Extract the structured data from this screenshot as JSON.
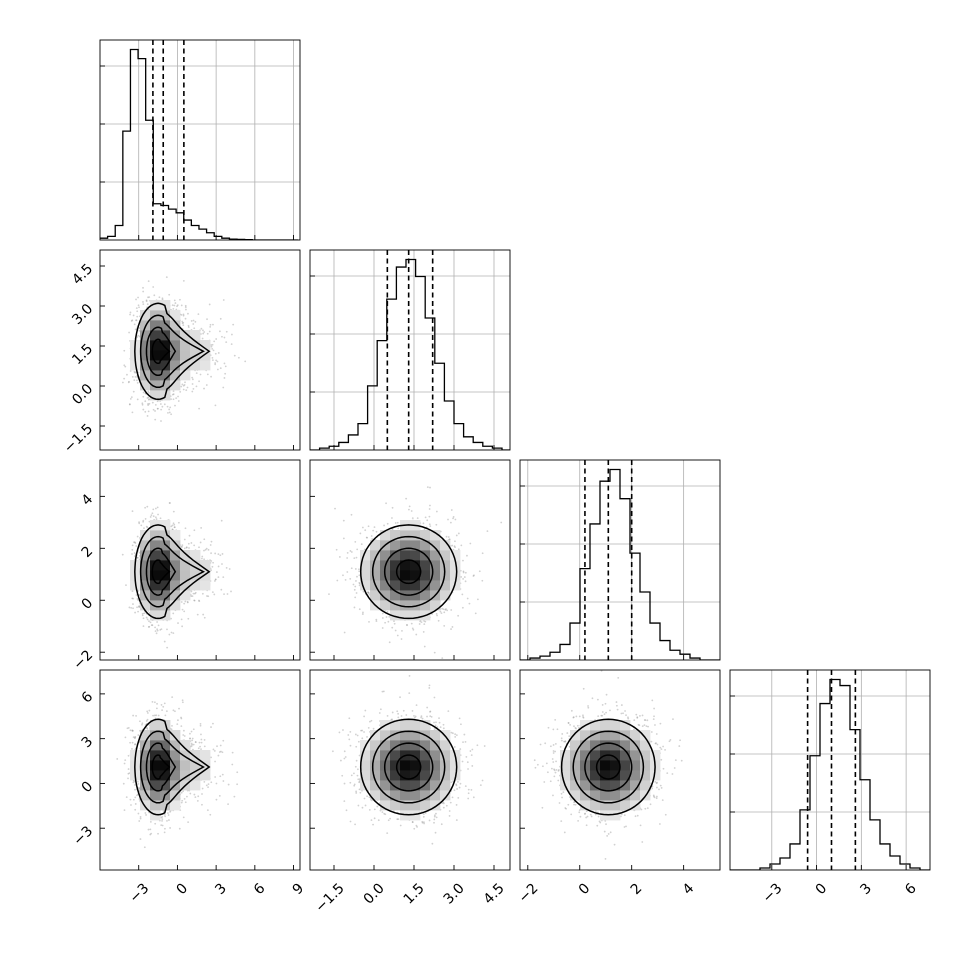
{
  "chart_data": {
    "type": "corner",
    "colors": {
      "points": "#9a9a9a",
      "lines": "#000000",
      "grid": "#b0b0b0"
    },
    "params": [
      {
        "range": [
          -6,
          9.5
        ],
        "ticks": [
          -3,
          0,
          3,
          6,
          9
        ],
        "tick_labels": [
          "−3",
          "0",
          "3",
          "6",
          "9"
        ],
        "quantiles": [
          -1.9,
          -1.1,
          0.5
        ],
        "hist": {
          "start": -6,
          "width": 0.59,
          "counts": [
            1,
            2,
            8,
            60,
            105,
            100,
            66,
            20,
            19,
            17,
            15,
            11,
            8,
            6,
            4,
            2,
            1,
            0.5,
            0.3,
            0.2,
            0,
            0,
            0,
            0,
            0,
            0
          ]
        },
        "dist": {
          "cx": -1.5,
          "sx": 0.9,
          "tail": 1.8
        }
      },
      {
        "range": [
          -2.4,
          5.1
        ],
        "ticks": [
          -1.5,
          0.0,
          1.5,
          3.0,
          4.5
        ],
        "tick_labels": [
          "−1.5",
          "0.0",
          "1.5",
          "3.0",
          "4.5"
        ],
        "quantiles": [
          0.5,
          1.3,
          2.2
        ],
        "hist": {
          "start": -2.4,
          "width": 0.36,
          "counts": [
            0,
            1,
            2,
            4,
            8,
            14,
            34,
            58,
            80,
            97,
            101,
            92,
            70,
            46,
            26,
            14,
            7,
            4,
            2,
            1,
            0
          ]
        },
        "dist": {
          "cx": 1.3,
          "sx": 0.9
        }
      },
      {
        "range": [
          -2.3,
          5.4
        ],
        "ticks": [
          -2,
          0,
          2,
          4
        ],
        "tick_labels": [
          "−2",
          "0",
          "2",
          "4"
        ],
        "quantiles": [
          0.2,
          1.1,
          2.0
        ],
        "hist": {
          "start": -2.3,
          "width": 0.385,
          "counts": [
            0,
            1,
            2,
            4,
            8,
            19,
            47,
            70,
            92,
            98,
            83,
            55,
            35,
            19,
            10,
            5,
            3,
            1,
            0,
            0
          ]
        },
        "dist": {
          "cx": 1.1,
          "sx": 0.9
        }
      },
      {
        "range": [
          -5.8,
          7.6
        ],
        "ticks": [
          -3,
          0,
          3,
          6
        ],
        "tick_labels": [
          "−3",
          "0",
          "3",
          "6"
        ],
        "quantiles": [
          -0.6,
          1.0,
          2.6
        ],
        "hist": {
          "start": -5.8,
          "width": 0.67,
          "counts": [
            0,
            0,
            0,
            1,
            3,
            6,
            13,
            30,
            57,
            83,
            95,
            92,
            70,
            45,
            25,
            13,
            7,
            3,
            1,
            0
          ]
        },
        "dist": {
          "cx": 1.1,
          "sx": 1.6
        }
      }
    ]
  }
}
